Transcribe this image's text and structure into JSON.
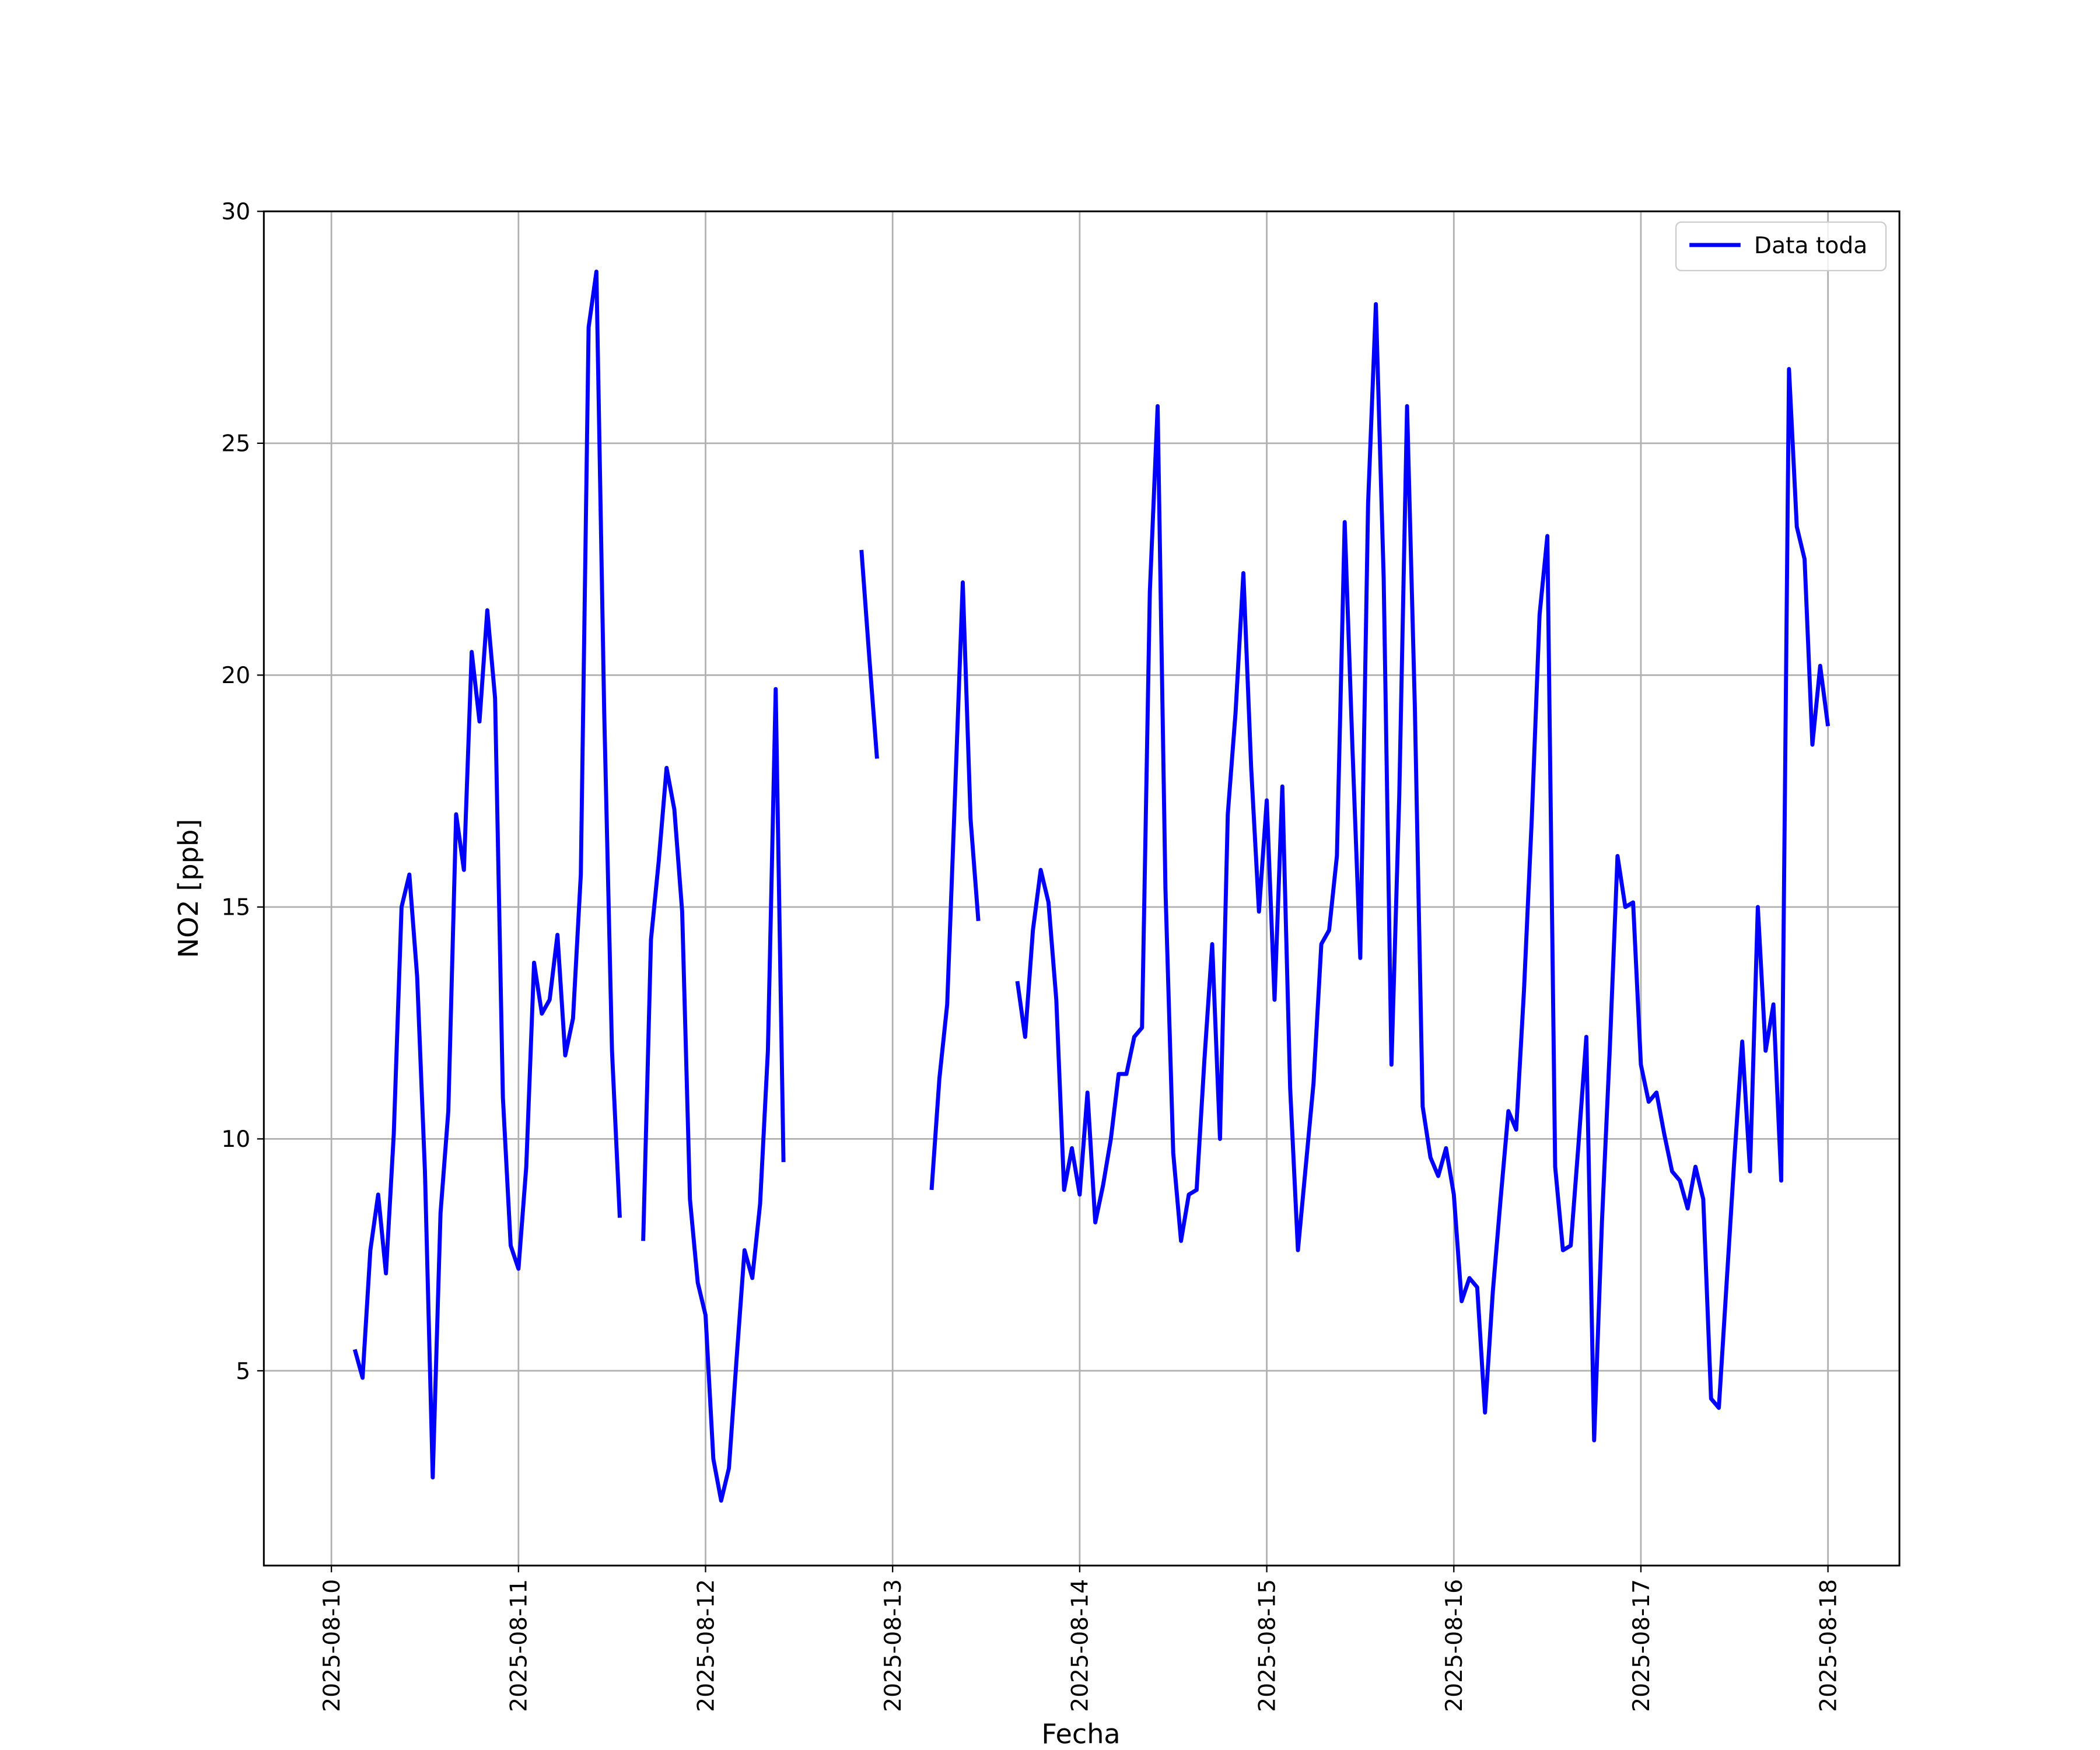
{
  "chart_data": {
    "type": "line",
    "xlabel": "Fecha",
    "ylabel": "NO2 [ppb]",
    "xlim": [
      "2025-08-09 15:20",
      "2025-08-18 09:10"
    ],
    "xticks": [
      "2025-08-10",
      "2025-08-11",
      "2025-08-12",
      "2025-08-13",
      "2025-08-14",
      "2025-08-15",
      "2025-08-16",
      "2025-08-17",
      "2025-08-18"
    ],
    "ylim": [
      0.8,
      30
    ],
    "yticks": [
      5,
      10,
      15,
      20,
      25,
      30
    ],
    "grid": true,
    "legend": "upper right",
    "x": [
      "2025-08-10 03:00",
      "2025-08-10 04:00",
      "2025-08-10 05:00",
      "2025-08-10 06:00",
      "2025-08-10 07:00",
      "2025-08-10 08:00",
      "2025-08-10 09:00",
      "2025-08-10 10:00",
      "2025-08-10 11:00",
      "2025-08-10 12:00",
      "2025-08-10 13:00",
      "2025-08-10 14:00",
      "2025-08-10 15:00",
      "2025-08-10 16:00",
      "2025-08-10 17:00",
      "2025-08-10 18:00",
      "2025-08-10 19:00",
      "2025-08-10 20:00",
      "2025-08-10 21:00",
      "2025-08-10 22:00",
      "2025-08-10 23:00",
      "2025-08-11 00:00",
      "2025-08-11 01:00",
      "2025-08-11 02:00",
      "2025-08-11 03:00",
      "2025-08-11 04:00",
      "2025-08-11 05:00",
      "2025-08-11 06:00",
      "2025-08-11 07:00",
      "2025-08-11 08:00",
      "2025-08-11 09:00",
      "2025-08-11 10:00",
      "2025-08-11 11:00",
      "2025-08-11 12:00",
      "2025-08-11 13:00",
      "2025-08-11 14:00",
      "2025-08-11 15:00",
      "2025-08-11 16:00",
      "2025-08-11 17:00",
      "2025-08-11 18:00",
      "2025-08-11 19:00",
      "2025-08-11 20:00",
      "2025-08-11 21:00",
      "2025-08-11 22:00",
      "2025-08-11 23:00",
      "2025-08-12 00:00",
      "2025-08-12 01:00",
      "2025-08-12 02:00",
      "2025-08-12 03:00",
      "2025-08-12 04:00",
      "2025-08-12 05:00",
      "2025-08-12 06:00",
      "2025-08-12 07:00",
      "2025-08-12 08:00",
      "2025-08-12 09:00",
      "2025-08-12 10:00",
      "2025-08-12 11:00",
      "2025-08-12 12:00",
      "2025-08-12 13:00",
      "2025-08-12 14:00",
      "2025-08-12 15:00",
      "2025-08-12 16:00",
      "2025-08-12 17:00",
      "2025-08-12 18:00",
      "2025-08-12 19:00",
      "2025-08-12 20:00",
      "2025-08-12 21:00",
      "2025-08-12 22:00",
      "2025-08-12 23:00",
      "2025-08-13 00:00",
      "2025-08-13 01:00",
      "2025-08-13 02:00",
      "2025-08-13 03:00",
      "2025-08-13 04:00",
      "2025-08-13 05:00",
      "2025-08-13 06:00",
      "2025-08-13 07:00",
      "2025-08-13 08:00",
      "2025-08-13 09:00",
      "2025-08-13 10:00",
      "2025-08-13 11:00",
      "2025-08-13 12:00",
      "2025-08-13 13:00",
      "2025-08-13 14:00",
      "2025-08-13 15:00",
      "2025-08-13 16:00",
      "2025-08-13 17:00",
      "2025-08-13 18:00",
      "2025-08-13 19:00",
      "2025-08-13 20:00",
      "2025-08-13 21:00",
      "2025-08-13 22:00",
      "2025-08-13 23:00",
      "2025-08-14 00:00",
      "2025-08-14 01:00",
      "2025-08-14 02:00",
      "2025-08-14 03:00",
      "2025-08-14 04:00",
      "2025-08-14 05:00",
      "2025-08-14 06:00",
      "2025-08-14 07:00",
      "2025-08-14 08:00",
      "2025-08-14 09:00",
      "2025-08-14 10:00",
      "2025-08-14 11:00",
      "2025-08-14 12:00",
      "2025-08-14 13:00",
      "2025-08-14 14:00",
      "2025-08-14 15:00",
      "2025-08-14 16:00",
      "2025-08-14 17:00",
      "2025-08-14 18:00",
      "2025-08-14 19:00",
      "2025-08-14 20:00",
      "2025-08-14 21:00",
      "2025-08-14 22:00",
      "2025-08-14 23:00",
      "2025-08-15 00:00",
      "2025-08-15 01:00",
      "2025-08-15 02:00",
      "2025-08-15 03:00",
      "2025-08-15 04:00",
      "2025-08-15 05:00",
      "2025-08-15 06:00",
      "2025-08-15 07:00",
      "2025-08-15 08:00",
      "2025-08-15 09:00",
      "2025-08-15 10:00",
      "2025-08-15 11:00",
      "2025-08-15 12:00",
      "2025-08-15 13:00",
      "2025-08-15 14:00",
      "2025-08-15 15:00",
      "2025-08-15 16:00",
      "2025-08-15 17:00",
      "2025-08-15 18:00",
      "2025-08-15 19:00",
      "2025-08-15 20:00",
      "2025-08-15 21:00",
      "2025-08-15 22:00",
      "2025-08-15 23:00",
      "2025-08-16 00:00",
      "2025-08-16 01:00",
      "2025-08-16 02:00",
      "2025-08-16 03:00",
      "2025-08-16 04:00",
      "2025-08-16 05:00",
      "2025-08-16 06:00",
      "2025-08-16 07:00",
      "2025-08-16 08:00",
      "2025-08-16 09:00",
      "2025-08-16 10:00",
      "2025-08-16 11:00",
      "2025-08-16 12:00",
      "2025-08-16 13:00",
      "2025-08-16 14:00",
      "2025-08-16 15:00",
      "2025-08-16 16:00",
      "2025-08-16 17:00",
      "2025-08-16 18:00",
      "2025-08-16 19:00",
      "2025-08-16 20:00",
      "2025-08-16 21:00",
      "2025-08-16 22:00",
      "2025-08-16 23:00",
      "2025-08-17 00:00",
      "2025-08-17 01:00",
      "2025-08-17 02:00",
      "2025-08-17 03:00",
      "2025-08-17 04:00",
      "2025-08-17 05:00",
      "2025-08-17 06:00",
      "2025-08-17 07:00",
      "2025-08-17 08:00",
      "2025-08-17 09:00",
      "2025-08-17 10:00",
      "2025-08-17 11:00",
      "2025-08-17 12:00",
      "2025-08-17 13:00",
      "2025-08-17 14:00",
      "2025-08-17 15:00",
      "2025-08-17 16:00",
      "2025-08-17 17:00",
      "2025-08-17 18:00",
      "2025-08-17 19:00",
      "2025-08-17 20:00",
      "2025-08-17 21:00",
      "2025-08-17 22:00",
      "2025-08-17 23:00",
      "2025-08-18 00:00"
    ],
    "series": [
      {
        "name": "Data toda",
        "color": "#0000ff",
        "values": [
          5.46,
          4.85,
          7.6,
          8.8,
          7.1,
          10.1,
          15.0,
          15.7,
          13.5,
          9.3,
          2.7,
          8.4,
          10.6,
          17.0,
          15.8,
          20.5,
          19.0,
          21.4,
          19.5,
          10.9,
          7.7,
          7.2,
          9.4,
          13.8,
          12.7,
          13.0,
          14.4,
          11.8,
          12.6,
          15.7,
          27.5,
          28.7,
          19.2,
          11.9,
          8.3,
          null,
          null,
          7.8,
          14.3,
          16.0,
          18.0,
          17.1,
          14.9,
          8.7,
          6.9,
          6.2,
          3.1,
          2.2,
          2.9,
          5.3,
          7.6,
          7.0,
          8.6,
          11.9,
          19.7,
          9.5,
          null,
          null,
          null,
          null,
          null,
          null,
          null,
          null,
          null,
          22.7,
          20.4,
          18.2,
          null,
          null,
          null,
          null,
          null,
          null,
          8.9,
          11.3,
          12.9,
          17.4,
          22.0,
          16.9,
          14.7,
          null,
          null,
          null,
          null,
          13.4,
          12.2,
          14.5,
          15.8,
          15.1,
          13.0,
          8.9,
          9.8,
          8.8,
          11.0,
          8.2,
          9.0,
          10.0,
          11.4,
          11.4,
          12.2,
          12.4,
          21.8,
          25.8,
          15.4,
          9.7,
          7.8,
          8.8,
          8.9,
          11.7,
          14.2,
          10.0,
          17.0,
          19.2,
          22.2,
          18.0,
          14.9,
          17.3,
          13.0,
          17.6,
          11.1,
          7.6,
          9.4,
          11.2,
          14.2,
          14.5,
          16.1,
          23.3,
          18.4,
          13.9,
          23.7,
          28.0,
          22.1,
          11.6,
          17.4,
          25.8,
          19.3,
          10.7,
          9.6,
          9.2,
          9.8,
          8.8,
          6.5,
          7.0,
          6.8,
          4.1,
          6.7,
          8.7,
          10.6,
          10.2,
          13.2,
          16.9,
          21.3,
          23.0,
          9.4,
          7.6,
          7.7,
          9.9,
          12.2,
          3.5,
          8.2,
          11.9,
          16.1,
          15.0,
          15.1,
          11.6,
          10.8,
          11.0,
          10.1,
          9.3,
          9.1,
          8.5,
          9.4,
          8.7,
          4.4,
          4.2,
          6.9,
          9.6,
          12.1,
          9.3,
          15.0,
          11.9,
          12.9,
          9.1,
          26.6,
          23.2,
          22.5,
          18.5,
          20.2,
          18.9
        ]
      }
    ]
  }
}
